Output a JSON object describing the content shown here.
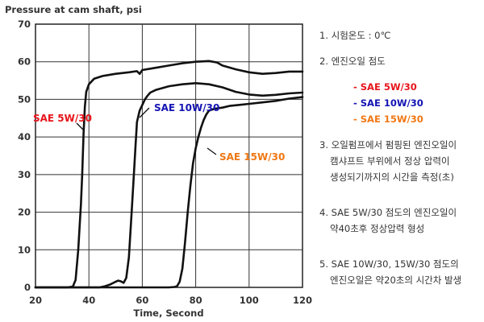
{
  "chart_data": {
    "type": "line",
    "title": "Pressure at cam shaft, psi",
    "xlabel": "Time, Second",
    "ylabel": "",
    "xlim": [
      20,
      120
    ],
    "ylim": [
      0,
      70
    ],
    "xticks": [
      20,
      40,
      60,
      80,
      100,
      120
    ],
    "yticks": [
      0,
      10,
      20,
      30,
      40,
      50,
      60,
      70
    ],
    "grid": true,
    "series": [
      {
        "name": "SAE 5W/30",
        "label_color": "#e8141b",
        "points": [
          [
            20,
            0
          ],
          [
            32,
            0
          ],
          [
            34,
            0.2
          ],
          [
            35,
            2
          ],
          [
            36,
            10
          ],
          [
            37,
            22
          ],
          [
            37.5,
            30
          ],
          [
            38,
            41
          ],
          [
            38.5,
            48
          ],
          [
            39,
            52
          ],
          [
            40,
            54
          ],
          [
            42,
            55.5
          ],
          [
            45,
            56.2
          ],
          [
            50,
            56.8
          ],
          [
            55,
            57.2
          ],
          [
            58,
            57.5
          ],
          [
            59,
            56.8
          ],
          [
            60,
            57.8
          ],
          [
            65,
            58.4
          ],
          [
            70,
            59
          ],
          [
            75,
            59.6
          ],
          [
            80,
            60
          ],
          [
            85,
            60.2
          ],
          [
            88,
            59.8
          ],
          [
            90,
            59
          ],
          [
            95,
            58
          ],
          [
            100,
            57.2
          ],
          [
            105,
            56.8
          ],
          [
            110,
            57
          ],
          [
            115,
            57.4
          ],
          [
            120,
            57.4
          ]
        ]
      },
      {
        "name": "SAE 10W/30",
        "label_color": "#1414b4",
        "points": [
          [
            20,
            0
          ],
          [
            44,
            0
          ],
          [
            46,
            0.3
          ],
          [
            48,
            0.8
          ],
          [
            50,
            1.5
          ],
          [
            51,
            1.8
          ],
          [
            52,
            1.6
          ],
          [
            53,
            1.2
          ],
          [
            54,
            2.5
          ],
          [
            55,
            8
          ],
          [
            56,
            20
          ],
          [
            57,
            32
          ],
          [
            57.5,
            38
          ],
          [
            58,
            44
          ],
          [
            59,
            47
          ],
          [
            60,
            48.5
          ],
          [
            61,
            50
          ],
          [
            62,
            51
          ],
          [
            63,
            51.8
          ],
          [
            65,
            52.5
          ],
          [
            70,
            53.5
          ],
          [
            75,
            54
          ],
          [
            80,
            54.3
          ],
          [
            85,
            54
          ],
          [
            90,
            53.2
          ],
          [
            95,
            52
          ],
          [
            100,
            51.3
          ],
          [
            105,
            51
          ],
          [
            110,
            51.2
          ],
          [
            115,
            51.6
          ],
          [
            120,
            51.8
          ]
        ]
      },
      {
        "name": "SAE 15W/30",
        "label_color": "#f07814",
        "points": [
          [
            20,
            0
          ],
          [
            70,
            0
          ],
          [
            72,
            0.1
          ],
          [
            73,
            0.3
          ],
          [
            74,
            1.5
          ],
          [
            75,
            5
          ],
          [
            76,
            12
          ],
          [
            77,
            20
          ],
          [
            78,
            27
          ],
          [
            79,
            33
          ],
          [
            80,
            37
          ],
          [
            81,
            40
          ],
          [
            82,
            42.5
          ],
          [
            83,
            44.5
          ],
          [
            84,
            46
          ],
          [
            85,
            47
          ],
          [
            87,
            47.5
          ],
          [
            90,
            47.8
          ],
          [
            93,
            48.3
          ],
          [
            96,
            48.5
          ],
          [
            100,
            48.8
          ],
          [
            105,
            49.2
          ],
          [
            110,
            49.6
          ],
          [
            115,
            50.2
          ],
          [
            120,
            50.6
          ]
        ]
      }
    ],
    "annotations": [
      {
        "text": "SAE 5W/30",
        "series": 0,
        "anchor": [
          37.8,
          42
        ]
      },
      {
        "text": "SAE 10W/30",
        "series": 1,
        "anchor": [
          58.5,
          45
        ]
      },
      {
        "text": "SAE 15W/30",
        "series": 2,
        "anchor": [
          79.5,
          36
        ]
      }
    ]
  },
  "notes": {
    "item1": "1. 시험온도 : 0℃",
    "item2": "2. 엔진오일 점도",
    "legend": [
      "- SAE 5W/30",
      "- SAE 10W/30",
      "- SAE 15W/30"
    ],
    "item3_line1": "3. 오일펌프에서 펌핑된 엔진오일이",
    "item3_line2": "캠샤프트 부위에서 정상 압력이",
    "item3_line3": "생성되기까지의 시간을 측정(초)",
    "item4_line1": "4. SAE 5W/30 점도의 엔진오일이",
    "item4_line2": "약40초후 정상압력 형성",
    "item5_line1": "5. SAE 10W/30, 15W/30 점도의",
    "item5_line2": "엔진오일은 약20초의 시간차 발생"
  }
}
